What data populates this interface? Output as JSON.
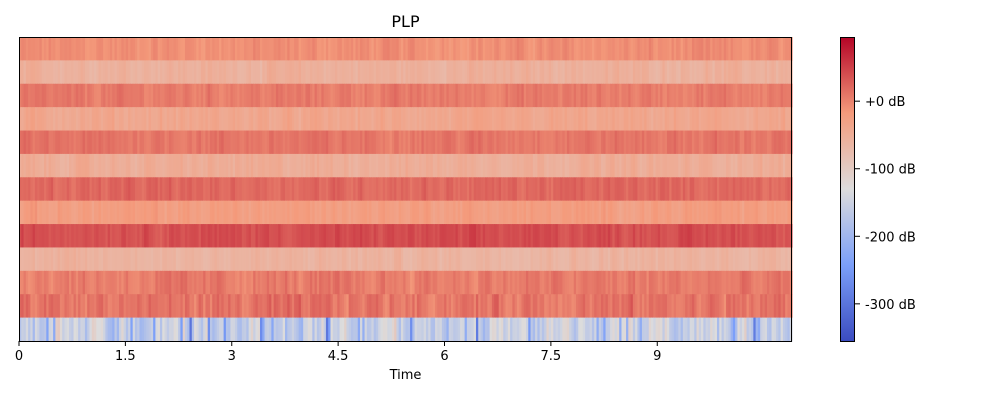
{
  "chart_data": {
    "type": "heatmap",
    "title": "PLP",
    "xlabel": "Time",
    "ylabel": "",
    "xlim": [
      0,
      10.9
    ],
    "x_ticks": [
      {
        "value": 0,
        "label": "0"
      },
      {
        "value": 1.5,
        "label": "1.5"
      },
      {
        "value": 3,
        "label": "3"
      },
      {
        "value": 4.5,
        "label": "4.5"
      },
      {
        "value": 6,
        "label": "6"
      },
      {
        "value": 7.5,
        "label": "7.5"
      },
      {
        "value": 9,
        "label": "9"
      }
    ],
    "colormap": "coolwarm",
    "colorbar": {
      "range_db": [
        -355,
        95
      ],
      "ticks": [
        {
          "value": 0,
          "label": "+0 dB"
        },
        {
          "value": -100,
          "label": "-100 dB"
        },
        {
          "value": -200,
          "label": "-200 dB"
        },
        {
          "value": -300,
          "label": "-300 dB"
        }
      ]
    },
    "n_coefficients": 13,
    "n_frames": 340,
    "row_mean_db": [
      -10,
      -55,
      5,
      -40,
      10,
      -50,
      20,
      -25,
      40,
      -60,
      5,
      10,
      -150
    ],
    "row_variation_db": [
      15,
      15,
      15,
      15,
      15,
      15,
      15,
      15,
      15,
      15,
      20,
      25,
      60
    ]
  }
}
